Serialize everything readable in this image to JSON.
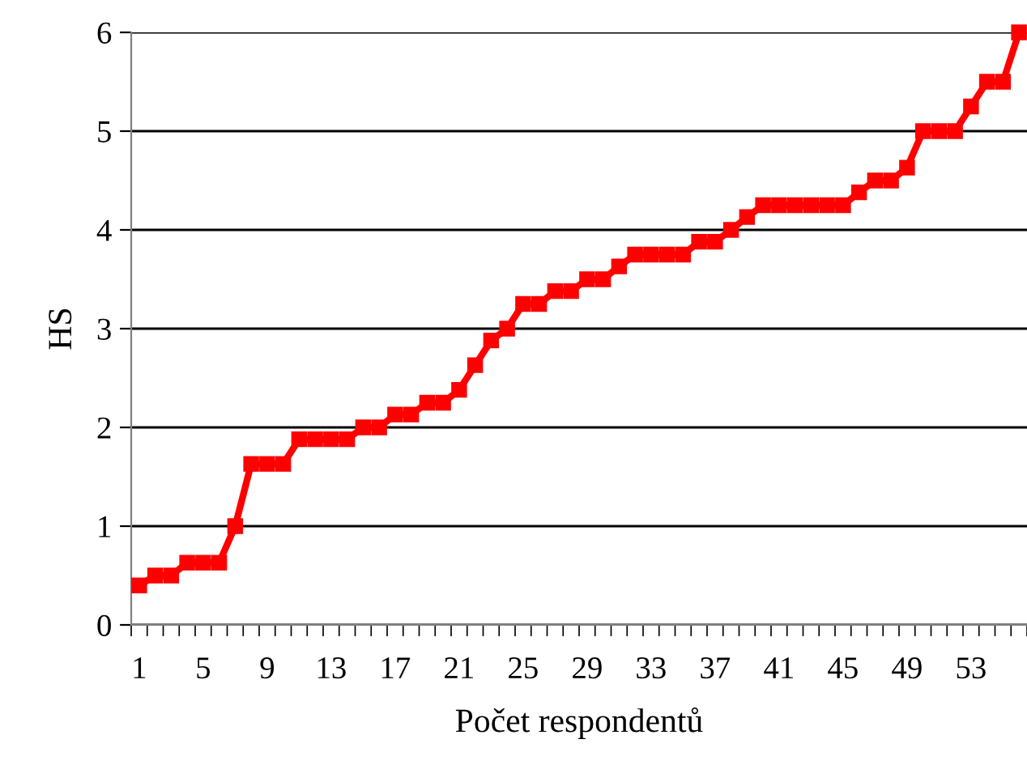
{
  "chart_data": {
    "type": "line",
    "xlabel": "Počet respondentů",
    "ylabel": "HS",
    "categories": [
      "1",
      null,
      null,
      null,
      "5",
      null,
      null,
      null,
      "9",
      null,
      null,
      null,
      "13",
      null,
      null,
      null,
      "17",
      null,
      null,
      null,
      "21",
      null,
      null,
      null,
      "25",
      null,
      null,
      null,
      "29",
      null,
      null,
      null,
      "33",
      null,
      null,
      null,
      "37",
      null,
      null,
      null,
      "41",
      null,
      null,
      null,
      "45",
      null,
      null,
      null,
      "49",
      null,
      null,
      null,
      "53",
      null,
      null,
      null
    ],
    "series": [
      {
        "color": "#ff0000",
        "values": [
          0.4,
          0.5,
          0.5,
          0.63,
          0.63,
          0.63,
          1.0,
          1.63,
          1.63,
          1.63,
          1.88,
          1.88,
          1.88,
          1.88,
          2.0,
          2.0,
          2.13,
          2.13,
          2.25,
          2.25,
          2.38,
          2.63,
          2.88,
          3.0,
          3.25,
          3.25,
          3.38,
          3.38,
          3.5,
          3.5,
          3.63,
          3.75,
          3.75,
          3.75,
          3.75,
          3.88,
          3.88,
          4.0,
          4.13,
          4.25,
          4.25,
          4.25,
          4.25,
          4.25,
          4.25,
          4.38,
          4.5,
          4.5,
          4.63,
          5.0,
          5.0,
          5.0,
          5.25,
          5.5,
          5.5,
          6.0
        ]
      }
    ],
    "ylim": [
      0,
      6
    ],
    "yticks": [
      0,
      1,
      2,
      3,
      4,
      5,
      6
    ],
    "grid": "y",
    "marker": "square",
    "line_style": "solid",
    "legend": false
  }
}
